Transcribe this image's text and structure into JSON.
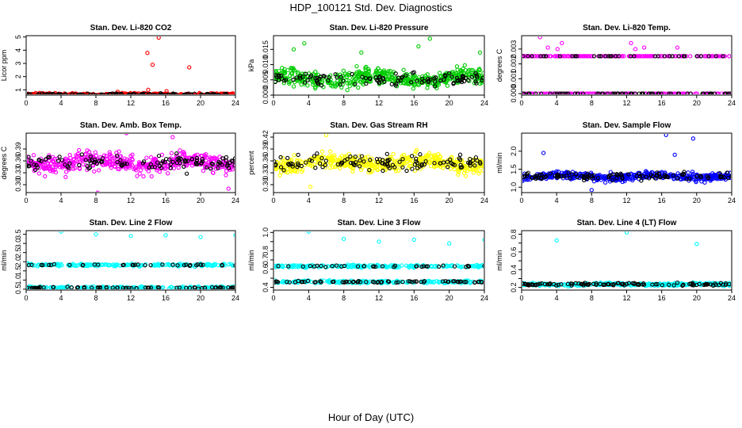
{
  "figure": {
    "title": "HDP_100121  Std. Dev. Diagnostics",
    "xlabel": "Hour of Day (UTC)"
  },
  "colors": {
    "black": "#000000",
    "red": "#ff0000",
    "green": "#00cc00",
    "magenta": "#ff00ff",
    "yellow": "#ffff00",
    "blue": "#0000ff",
    "cyan": "#00ffff"
  },
  "chart_data": [
    {
      "type": "scatter",
      "title": "Stan. Dev. Li-820 CO2",
      "ylabel": "Licor ppm",
      "xlim": [
        0,
        24
      ],
      "ylim": [
        0.6,
        5.1
      ],
      "xticks": [
        0,
        4,
        8,
        12,
        16,
        20,
        24
      ],
      "yticks": [
        1,
        2,
        3,
        4,
        5
      ],
      "yticklabels": [
        "1",
        "2",
        "3",
        "4",
        "5"
      ],
      "color": "#ff0000",
      "base": {
        "kind": "band",
        "center": 0.65,
        "spread": 0.12
      },
      "outliers": [
        {
          "x": 15.2,
          "y": 4.95
        },
        {
          "x": 13.9,
          "y": 3.8
        },
        {
          "x": 14.5,
          "y": 2.9
        },
        {
          "x": 18.7,
          "y": 2.7
        },
        {
          "x": 14.0,
          "y": 1.0
        },
        {
          "x": 16.1,
          "y": 0.9
        },
        {
          "x": 10.5,
          "y": 0.85
        }
      ]
    },
    {
      "type": "scatter",
      "title": "Stan. Dev. Li-820 Pressure",
      "ylabel": "kPa",
      "xlim": [
        0,
        24
      ],
      "ylim": [
        0,
        0.0195
      ],
      "xticks": [
        0,
        4,
        8,
        12,
        16,
        20,
        24
      ],
      "yticks": [
        0,
        0.005,
        0.01,
        0.015
      ],
      "yticklabels": [
        "0.000",
        "0.005",
        "0.010",
        "0.015"
      ],
      "color": "#00cc00",
      "base": {
        "kind": "band",
        "center": 0.0055,
        "spread": 0.0035
      },
      "outliers": [
        {
          "x": 17.8,
          "y": 0.0185
        },
        {
          "x": 3.5,
          "y": 0.017
        },
        {
          "x": 16.5,
          "y": 0.016
        },
        {
          "x": 2.3,
          "y": 0.015
        },
        {
          "x": 23.5,
          "y": 0.014
        },
        {
          "x": 10.0,
          "y": 0.014
        }
      ]
    },
    {
      "type": "scatter",
      "title": "Stan. Dev. Li-820 Temp.",
      "ylabel": "degrees C",
      "xlim": [
        0,
        24
      ],
      "ylim": [
        -0.0001,
        0.0039
      ],
      "xticks": [
        0,
        4,
        8,
        12,
        16,
        20,
        24
      ],
      "yticks": [
        0,
        0.001,
        0.002,
        0.003
      ],
      "yticklabels": [
        "0.000",
        "0.001",
        "0.002",
        "0.003"
      ],
      "color": "#ff00ff",
      "base": {
        "kind": "levels",
        "levels": [
          0.0,
          0.00252
        ]
      },
      "outliers": [
        {
          "x": 2.1,
          "y": 0.0038
        },
        {
          "x": 3.0,
          "y": 0.0031
        },
        {
          "x": 4.1,
          "y": 0.003
        },
        {
          "x": 12.5,
          "y": 0.0034
        },
        {
          "x": 13.0,
          "y": 0.003
        },
        {
          "x": 14.0,
          "y": 0.0031
        },
        {
          "x": 17.8,
          "y": 0.0031
        },
        {
          "x": 4.6,
          "y": 0.0034
        }
      ]
    },
    {
      "type": "scatter",
      "title": "Stan. Dev. Amb. Box Temp.",
      "ylabel": "degrees C",
      "xlim": [
        0,
        24
      ],
      "ylim": [
        0.28,
        0.43
      ],
      "xticks": [
        0,
        4,
        8,
        12,
        16,
        20,
        24
      ],
      "yticks": [
        0.3,
        0.33,
        0.36,
        0.39
      ],
      "yticklabels": [
        "0.30",
        "0.33",
        "0.36",
        "0.39"
      ],
      "color": "#ff00ff",
      "base": {
        "kind": "band",
        "center": 0.355,
        "spread": 0.03
      },
      "outliers": [
        {
          "x": 8.2,
          "y": 0.28
        },
        {
          "x": 11.5,
          "y": 0.43
        },
        {
          "x": 16.8,
          "y": 0.42
        },
        {
          "x": 23.2,
          "y": 0.29
        }
      ]
    },
    {
      "type": "scatter",
      "title": "Stan. Dev. Gas Stream RH",
      "ylabel": "percent",
      "xlim": [
        0,
        24
      ],
      "ylim": [
        0.28,
        0.43
      ],
      "xticks": [
        0,
        4,
        8,
        12,
        16,
        20,
        24
      ],
      "yticks": [
        0.3,
        0.33,
        0.36,
        0.39,
        0.42
      ],
      "yticklabels": [
        "0.30",
        "0.33",
        "0.36",
        "0.39",
        "0.42"
      ],
      "color": "#ffff00",
      "base": {
        "kind": "band",
        "center": 0.355,
        "spread": 0.028
      },
      "outliers": [
        {
          "x": 6.0,
          "y": 0.425
        },
        {
          "x": 4.2,
          "y": 0.295
        }
      ]
    },
    {
      "type": "scatter",
      "title": "Stan. Dev. Sample Flow",
      "ylabel": "ml/min",
      "xlim": [
        0,
        24
      ],
      "ylim": [
        0.85,
        2.5
      ],
      "xticks": [
        0,
        4,
        8,
        12,
        16,
        20,
        24
      ],
      "yticks": [
        1.0,
        1.5,
        2.0
      ],
      "yticklabels": [
        "1.0",
        "1.5",
        "2.0"
      ],
      "color": "#0000ff",
      "base": {
        "kind": "band",
        "center": 1.3,
        "spread": 0.15
      },
      "outliers": [
        {
          "x": 16.5,
          "y": 2.45
        },
        {
          "x": 19.6,
          "y": 2.35
        },
        {
          "x": 2.5,
          "y": 1.95
        },
        {
          "x": 17.5,
          "y": 1.9
        },
        {
          "x": 8.0,
          "y": 0.92
        }
      ]
    },
    {
      "type": "scatter",
      "title": "Stan. Dev. Line 2 Flow",
      "ylabel": "ml/min",
      "xlim": [
        0,
        24
      ],
      "ylim": [
        0.45,
        3.7
      ],
      "xticks": [
        0,
        4,
        8,
        12,
        16,
        20,
        24
      ],
      "yticks": [
        0.5,
        1.0,
        1.5,
        2.0,
        2.5,
        3.0,
        3.5
      ],
      "yticklabels": [
        "0.5",
        "1.0",
        "1.5",
        "2.0",
        "2.5",
        "3.0",
        "3.5"
      ],
      "color": "#00ffff",
      "base": {
        "kind": "levels",
        "levels": [
          0.58,
          1.82
        ]
      },
      "outliers": [
        {
          "x": 4.0,
          "y": 3.65
        },
        {
          "x": 8.0,
          "y": 3.5
        },
        {
          "x": 12.0,
          "y": 3.4
        },
        {
          "x": 16.0,
          "y": 3.45
        },
        {
          "x": 20.0,
          "y": 3.35
        },
        {
          "x": 24.0,
          "y": 3.45
        }
      ]
    },
    {
      "type": "scatter",
      "title": "Stan. Dev. Line 3 Flow",
      "ylabel": "ml/min",
      "xlim": [
        0,
        24
      ],
      "ylim": [
        0.37,
        1.02
      ],
      "xticks": [
        0,
        4,
        8,
        12,
        16,
        20,
        24
      ],
      "yticks": [
        0.4,
        0.5,
        0.6,
        0.7,
        0.8,
        0.9,
        1.0
      ],
      "yticklabels": [
        "0.4",
        "",
        "0.6",
        "0.7",
        "0.8",
        "",
        "1.0"
      ],
      "color": "#00ffff",
      "base": {
        "kind": "levels",
        "levels": [
          0.46,
          0.63
        ]
      },
      "outliers": [
        {
          "x": 4.0,
          "y": 1.01
        },
        {
          "x": 8.0,
          "y": 0.93
        },
        {
          "x": 12.0,
          "y": 0.9
        },
        {
          "x": 16.0,
          "y": 0.92
        },
        {
          "x": 20.0,
          "y": 0.88
        },
        {
          "x": 24.0,
          "y": 0.92
        }
      ]
    },
    {
      "type": "scatter",
      "title": "Stan. Dev. Line 4 (LT) Flow",
      "ylabel": "ml/min",
      "xlim": [
        0,
        24
      ],
      "ylim": [
        0.17,
        0.84
      ],
      "xticks": [
        0,
        4,
        8,
        12,
        16,
        20,
        24
      ],
      "yticks": [
        0.2,
        0.3,
        0.4,
        0.5,
        0.6,
        0.7,
        0.8
      ],
      "yticklabels": [
        "0.2",
        "",
        "0.4",
        "",
        "0.6",
        "",
        "0.8"
      ],
      "color": "#00ffff",
      "base": {
        "kind": "band",
        "center": 0.235,
        "spread": 0.02
      },
      "outliers": [
        {
          "x": 4.0,
          "y": 0.73
        },
        {
          "x": 12.0,
          "y": 0.82
        },
        {
          "x": 20.0,
          "y": 0.69
        }
      ]
    }
  ]
}
